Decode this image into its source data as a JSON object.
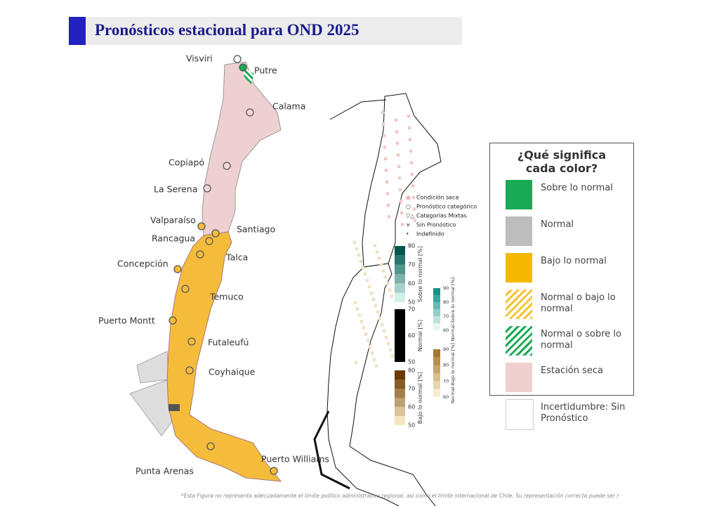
{
  "title": "Pronósticos estacional para OND 2025",
  "cities": [
    "Visviri",
    "Putre",
    "Calama",
    "Copiapó",
    "La Serena",
    "Valparaíso",
    "Rancagua",
    "Santiago",
    "Talca",
    "Concepción",
    "Temuco",
    "Puerto Montt",
    "Futaleufú",
    "Coyhaique",
    "Punta Arenas",
    "Puerto Williams"
  ],
  "map_legend": [
    "Condición seca",
    "Pronóstico categórico",
    "Categorías Mixtas",
    "Sin Pronóstico",
    "Indefinido"
  ],
  "colorbars": [
    {
      "label": "Sobre lo normal [%]",
      "ticks": [
        "80",
        "70",
        "60",
        "50"
      ]
    },
    {
      "label": "Normal [%]",
      "ticks": [
        "70",
        "60",
        "50"
      ]
    },
    {
      "label": "Bajo lo normal [%]",
      "ticks": [
        "80",
        "70",
        "60",
        "50"
      ]
    },
    {
      "label": "Normal-Sobre lo normal [%]",
      "ticks": [
        "90",
        "80",
        "70",
        "60"
      ]
    },
    {
      "label": "Normal-Bajo lo normal [%]",
      "ticks": [
        "90",
        "80",
        "70",
        "60"
      ]
    }
  ],
  "legend": {
    "title": "¿Qué significa cada color?",
    "items": [
      "Sobre lo normal",
      "Normal",
      "Bajo lo normal",
      "Normal o bajo lo normal",
      "Normal o sobre lo normal",
      "Estación seca",
      "Incertidumbre: Sin Pronóstico"
    ]
  },
  "footnote": "*Esta Figura no representa adecuadamente el límite político administrativo regional, así como el límite internacional de Chile. Su representación correcta puede ser r"
}
